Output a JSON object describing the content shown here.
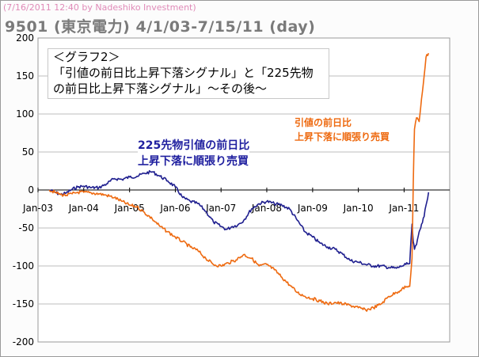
{
  "header": {
    "stamp": "(7/16/2011 12:40 by Nadeshiko Investment)",
    "title": "9501 (東京電力)  4/1/03-7/15/11 (day)"
  },
  "annotations": {
    "box_line1": "＜グラフ2＞",
    "box_line2": "「引値の前日比上昇下落シグナル」と「225先物",
    "box_line3": "の前日比上昇下落シグナル」～その後～",
    "blue_line1": "225先物引値の前日比",
    "blue_line2": "上昇下落に順張り売買",
    "orange_line1": "引値の前日比",
    "orange_line2": "上昇下落に順張り売買"
  },
  "colors": {
    "blue_series": "#1f1f8f",
    "orange_series": "#ee6a10",
    "grid": "#bdbdbd",
    "axis": "#555555"
  },
  "chart_data": {
    "type": "line",
    "x_axis": {
      "type": "date",
      "range": [
        "2003-01-01",
        "2011-12-31"
      ],
      "tick_labels": [
        "Jan-03",
        "Jan-04",
        "Jan-05",
        "Jan-06",
        "Jan-07",
        "Jan-08",
        "Jan-09",
        "Jan-10",
        "Jan-11"
      ],
      "tick_dates": [
        "2003-01-01",
        "2004-01-01",
        "2005-01-01",
        "2006-01-01",
        "2007-01-01",
        "2008-01-01",
        "2009-01-01",
        "2010-01-01",
        "2011-01-01"
      ]
    },
    "y_axis": {
      "range": [
        -200,
        200
      ],
      "tick_values": [
        -200,
        -150,
        -100,
        -50,
        0,
        50,
        100,
        150,
        200
      ],
      "tick_labels": [
        "-200",
        "-150",
        "-100",
        "-50",
        "0",
        "50",
        "100",
        "150",
        "200"
      ]
    },
    "grid": "horizontal",
    "series": [
      {
        "color": "#1f1f8f",
        "points": [
          [
            "2003-04-01",
            0
          ],
          [
            "2003-05-15",
            -3
          ],
          [
            "2003-07-01",
            -6
          ],
          [
            "2003-08-15",
            -4
          ],
          [
            "2003-10-01",
            1
          ],
          [
            "2003-11-15",
            4
          ],
          [
            "2004-01-01",
            5
          ],
          [
            "2004-03-01",
            3
          ],
          [
            "2004-05-01",
            3
          ],
          [
            "2004-07-01",
            8
          ],
          [
            "2004-09-01",
            15
          ],
          [
            "2004-11-01",
            14
          ],
          [
            "2005-01-01",
            17
          ],
          [
            "2005-03-01",
            18
          ],
          [
            "2005-05-01",
            22
          ],
          [
            "2005-07-01",
            24
          ],
          [
            "2005-09-01",
            18
          ],
          [
            "2005-11-01",
            12
          ],
          [
            "2006-01-01",
            4
          ],
          [
            "2006-03-01",
            -10
          ],
          [
            "2006-05-01",
            -15
          ],
          [
            "2006-07-01",
            -18
          ],
          [
            "2006-09-01",
            -28
          ],
          [
            "2006-11-01",
            -42
          ],
          [
            "2007-01-01",
            -48
          ],
          [
            "2007-02-15",
            -52
          ],
          [
            "2007-04-01",
            -48
          ],
          [
            "2007-05-15",
            -46
          ],
          [
            "2007-07-01",
            -40
          ],
          [
            "2007-09-01",
            -25
          ],
          [
            "2007-11-01",
            -18
          ],
          [
            "2008-01-01",
            -15
          ],
          [
            "2008-03-01",
            -18
          ],
          [
            "2008-05-01",
            -20
          ],
          [
            "2008-07-01",
            -25
          ],
          [
            "2008-09-01",
            -40
          ],
          [
            "2008-11-01",
            -55
          ],
          [
            "2009-01-01",
            -62
          ],
          [
            "2009-03-01",
            -70
          ],
          [
            "2009-05-01",
            -75
          ],
          [
            "2009-07-01",
            -78
          ],
          [
            "2009-09-01",
            -85
          ],
          [
            "2009-11-01",
            -93
          ],
          [
            "2010-01-01",
            -95
          ],
          [
            "2010-03-01",
            -98
          ],
          [
            "2010-05-01",
            -100
          ],
          [
            "2010-07-01",
            -100
          ],
          [
            "2010-09-01",
            -102
          ],
          [
            "2010-11-01",
            -103
          ],
          [
            "2010-12-15",
            -100
          ],
          [
            "2011-01-15",
            -98
          ],
          [
            "2011-02-15",
            -97
          ],
          [
            "2011-03-05",
            -45
          ],
          [
            "2011-03-15",
            -68
          ],
          [
            "2011-03-25",
            -78
          ],
          [
            "2011-04-10",
            -72
          ],
          [
            "2011-05-01",
            -55
          ],
          [
            "2011-05-20",
            -45
          ],
          [
            "2011-06-10",
            -35
          ],
          [
            "2011-06-25",
            -20
          ],
          [
            "2011-07-15",
            -3
          ]
        ]
      },
      {
        "color": "#ee6a10",
        "points": [
          [
            "2003-04-01",
            0
          ],
          [
            "2003-05-15",
            -3
          ],
          [
            "2003-07-01",
            -6
          ],
          [
            "2003-08-15",
            -7
          ],
          [
            "2003-10-01",
            -5
          ],
          [
            "2003-11-15",
            -3
          ],
          [
            "2004-01-01",
            -3
          ],
          [
            "2004-03-01",
            -4
          ],
          [
            "2004-05-01",
            -5
          ],
          [
            "2004-07-01",
            -7
          ],
          [
            "2004-09-01",
            -10
          ],
          [
            "2004-11-01",
            -15
          ],
          [
            "2005-01-01",
            -20
          ],
          [
            "2005-03-01",
            -22
          ],
          [
            "2005-05-01",
            -30
          ],
          [
            "2005-07-01",
            -38
          ],
          [
            "2005-09-01",
            -48
          ],
          [
            "2005-11-01",
            -55
          ],
          [
            "2006-01-01",
            -62
          ],
          [
            "2006-03-01",
            -68
          ],
          [
            "2006-05-01",
            -75
          ],
          [
            "2006-07-01",
            -80
          ],
          [
            "2006-09-01",
            -90
          ],
          [
            "2006-11-01",
            -98
          ],
          [
            "2007-01-01",
            -100
          ],
          [
            "2007-03-01",
            -96
          ],
          [
            "2007-05-01",
            -92
          ],
          [
            "2007-07-01",
            -85
          ],
          [
            "2007-09-01",
            -90
          ],
          [
            "2007-11-01",
            -100
          ],
          [
            "2008-01-01",
            -98
          ],
          [
            "2008-03-01",
            -105
          ],
          [
            "2008-05-01",
            -115
          ],
          [
            "2008-07-01",
            -125
          ],
          [
            "2008-09-01",
            -135
          ],
          [
            "2008-11-01",
            -140
          ],
          [
            "2009-01-01",
            -143
          ],
          [
            "2009-03-01",
            -146
          ],
          [
            "2009-05-01",
            -150
          ],
          [
            "2009-07-01",
            -148
          ],
          [
            "2009-09-01",
            -150
          ],
          [
            "2009-11-01",
            -152
          ],
          [
            "2010-01-01",
            -155
          ],
          [
            "2010-03-01",
            -158
          ],
          [
            "2010-05-01",
            -155
          ],
          [
            "2010-07-01",
            -150
          ],
          [
            "2010-09-01",
            -140
          ],
          [
            "2010-11-01",
            -135
          ],
          [
            "2010-12-15",
            -130
          ],
          [
            "2011-01-15",
            -128
          ],
          [
            "2011-02-15",
            -127
          ],
          [
            "2011-03-05",
            -90
          ],
          [
            "2011-03-15",
            10
          ],
          [
            "2011-03-25",
            80
          ],
          [
            "2011-04-10",
            95
          ],
          [
            "2011-05-01",
            90
          ],
          [
            "2011-05-20",
            120
          ],
          [
            "2011-06-10",
            150
          ],
          [
            "2011-06-25",
            175
          ],
          [
            "2011-07-15",
            180
          ]
        ]
      }
    ]
  }
}
